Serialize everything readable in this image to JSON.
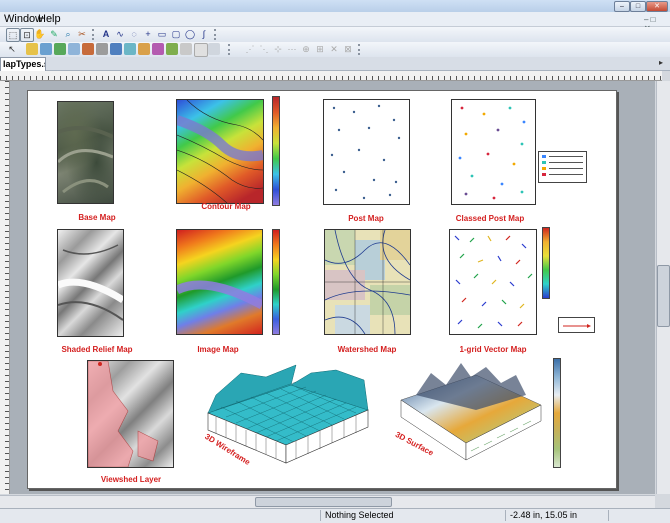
{
  "menu": {
    "items": [
      "Window",
      "Help"
    ]
  },
  "document": {
    "tab_label": "lapTypes.srf"
  },
  "maps": {
    "base": {
      "caption": "Base Map"
    },
    "contour": {
      "caption": "Contour Map"
    },
    "post": {
      "caption": "Post Map"
    },
    "classed_post": {
      "caption": "Classed Post Map"
    },
    "shaded_relief": {
      "caption": "Shaded Relief Map"
    },
    "image": {
      "caption": "Image Map"
    },
    "watershed": {
      "caption": "Watershed Map"
    },
    "vector": {
      "caption": "1-grid Vector Map"
    },
    "viewshed": {
      "caption": "Viewshed Layer"
    },
    "wireframe": {
      "caption": "3D Wireframe"
    },
    "surface": {
      "caption": "3D Surface"
    }
  },
  "status": {
    "selection": "Nothing Selected",
    "coordinates": "-2.48 in, 15.05 in"
  },
  "colors": {
    "caption_red": "#d41f1f",
    "accent_blue": "#3a6fb0"
  }
}
